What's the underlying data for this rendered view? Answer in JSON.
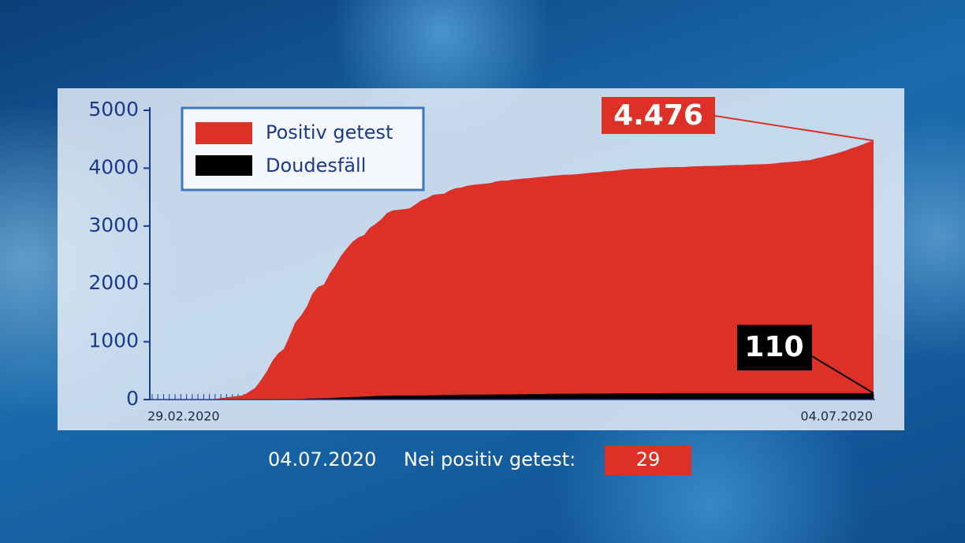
{
  "chart_data": {
    "type": "area",
    "categories": [
      "29.02.2020",
      null,
      null,
      null,
      null,
      null,
      null,
      null,
      null,
      null,
      null,
      null,
      null,
      null,
      null,
      null,
      null,
      null,
      null,
      null,
      null,
      null,
      null,
      null,
      null,
      null,
      null,
      null,
      null,
      null,
      null,
      null,
      null,
      null,
      null,
      null,
      null,
      null,
      null,
      null,
      null,
      null,
      null,
      null,
      null,
      null,
      null,
      null,
      null,
      null,
      null,
      null,
      null,
      null,
      null,
      null,
      null,
      null,
      null,
      null,
      null,
      null,
      null,
      null,
      null,
      null,
      null,
      null,
      null,
      null,
      null,
      null,
      null,
      null,
      null,
      null,
      null,
      null,
      null,
      null,
      null,
      null,
      null,
      null,
      null,
      null,
      null,
      null,
      null,
      null,
      null,
      null,
      null,
      null,
      null,
      null,
      null,
      null,
      null,
      null,
      null,
      null,
      null,
      null,
      null,
      null,
      null,
      null,
      null,
      null,
      null,
      null,
      null,
      null,
      null,
      null,
      null,
      null,
      null,
      null,
      null,
      null,
      null,
      null,
      null,
      null,
      "04.07.2020"
    ],
    "series": [
      {
        "name": "Positiv getest",
        "color": "#dd3127",
        "values": [
          1,
          1,
          1,
          1,
          1,
          1,
          2,
          3,
          4,
          5,
          7,
          7,
          26,
          38,
          51,
          59,
          77,
          140,
          203,
          335,
          484,
          670,
          798,
          875,
          1099,
          1333,
          1453,
          1605,
          1831,
          1950,
          1988,
          2178,
          2319,
          2487,
          2612,
          2729,
          2804,
          2843,
          2970,
          3034,
          3115,
          3223,
          3270,
          3281,
          3292,
          3307,
          3373,
          3444,
          3480,
          3537,
          3550,
          3558,
          3618,
          3654,
          3665,
          3695,
          3711,
          3723,
          3729,
          3741,
          3769,
          3784,
          3784,
          3802,
          3812,
          3824,
          3828,
          3840,
          3851,
          3859,
          3871,
          3877,
          3886,
          3888,
          3894,
          3904,
          3915,
          3923,
          3930,
          3945,
          3947,
          3958,
          3971,
          3980,
          3990,
          3993,
          3995,
          4000,
          4008,
          4012,
          4016,
          4018,
          4019,
          4020,
          4027,
          4032,
          4035,
          4039,
          4040,
          4043,
          4048,
          4052,
          4054,
          4055,
          4061,
          4065,
          4066,
          4070,
          4075,
          4085,
          4098,
          4104,
          4113,
          4120,
          4133,
          4140,
          4170,
          4190,
          4216,
          4240,
          4270,
          4300,
          4340,
          4370,
          4405,
          4447,
          4476
        ]
      },
      {
        "name": "Doudesfäll",
        "color": "#000000",
        "values": [
          0,
          0,
          0,
          0,
          0,
          0,
          0,
          0,
          0,
          0,
          0,
          0,
          0,
          1,
          1,
          1,
          1,
          1,
          2,
          2,
          4,
          4,
          8,
          8,
          8,
          8,
          9,
          15,
          18,
          21,
          22,
          23,
          31,
          36,
          41,
          44,
          46,
          52,
          54,
          62,
          66,
          67,
          69,
          69,
          69,
          69,
          69,
          72,
          72,
          73,
          75,
          78,
          80,
          83,
          83,
          85,
          85,
          85,
          86,
          87,
          88,
          88,
          89,
          89,
          92,
          92,
          96,
          96,
          96,
          98,
          98,
          100,
          100,
          101,
          101,
          102,
          103,
          103,
          103,
          104,
          104,
          106,
          107,
          107,
          108,
          108,
          109,
          109,
          109,
          109,
          110,
          110,
          110,
          110,
          110,
          110,
          110,
          110,
          110,
          110,
          110,
          110,
          110,
          110,
          110,
          110,
          110,
          110,
          110,
          110,
          110,
          110,
          110,
          110,
          110,
          110,
          110,
          110,
          110,
          110,
          110,
          110,
          110,
          110,
          110,
          110,
          110
        ]
      }
    ],
    "ylim": [
      0,
      5000
    ],
    "yticks": [
      0,
      1000,
      2000,
      3000,
      4000,
      5000
    ],
    "legend": "upper left",
    "annotations": [
      "4.476",
      "110"
    ]
  },
  "footer": {
    "date": "04.07.2020",
    "label": "Nei positiv getest:",
    "value": 29
  }
}
